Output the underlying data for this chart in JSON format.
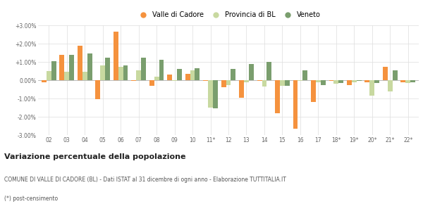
{
  "years": [
    "02",
    "03",
    "04",
    "05",
    "06",
    "07",
    "08",
    "09",
    "10",
    "11*",
    "12",
    "13",
    "14",
    "15",
    "16",
    "17",
    "18*",
    "19*",
    "20*",
    "21*",
    "22*"
  ],
  "valle_cadore": [
    -0.1,
    1.4,
    1.9,
    -1.05,
    2.65,
    -0.05,
    -0.3,
    0.3,
    0.35,
    -0.05,
    -0.4,
    -0.95,
    -0.05,
    -1.8,
    -2.65,
    -1.2,
    -0.05,
    -0.25,
    -0.1,
    0.75,
    -0.1
  ],
  "provincia_bl": [
    0.5,
    0.45,
    0.45,
    0.8,
    0.75,
    0.55,
    0.2,
    -0.05,
    0.55,
    -1.5,
    -0.25,
    -0.1,
    -0.35,
    -0.3,
    -0.05,
    -0.1,
    -0.2,
    -0.1,
    -0.85,
    -0.6,
    -0.15
  ],
  "veneto": [
    1.05,
    1.4,
    1.45,
    1.25,
    0.8,
    1.25,
    1.1,
    0.6,
    0.65,
    -1.55,
    0.6,
    0.9,
    1.0,
    -0.3,
    0.55,
    -0.25,
    -0.15,
    -0.05,
    -0.15,
    0.55,
    -0.1
  ],
  "color_valle": "#f5923e",
  "color_provincia": "#c8d9a0",
  "color_veneto": "#7a9e6e",
  "title": "Variazione percentuale della popolazione",
  "subtitle": "COMUNE DI VALLE DI CADORE (BL) - Dati ISTAT al 31 dicembre di ogni anno - Elaborazione TUTTITALIA.IT",
  "footnote": "(*) post-censimento",
  "legend_labels": [
    "Valle di Cadore",
    "Provincia di BL",
    "Veneto"
  ],
  "ylim": [
    -3.0,
    3.0
  ],
  "yticks": [
    -3.0,
    -2.0,
    -1.0,
    0.0,
    1.0,
    2.0,
    3.0
  ],
  "ytick_labels": [
    "-3.00%",
    "-2.00%",
    "-1.00%",
    "0.00%",
    "+1.00%",
    "+2.00%",
    "+3.00%"
  ],
  "background_color": "#ffffff",
  "grid_color": "#dddddd"
}
